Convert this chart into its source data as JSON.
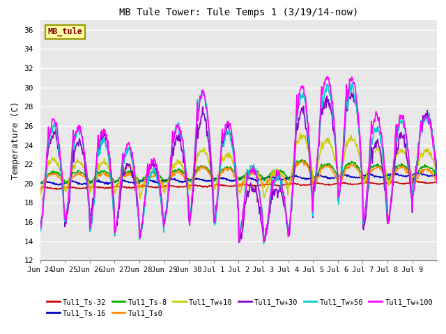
{
  "title": "MB Tule Tower: Tule Temps 1 (3/19/14-now)",
  "ylabel": "Temperature (C)",
  "ylim": [
    12,
    37
  ],
  "yticks": [
    12,
    14,
    16,
    18,
    20,
    22,
    24,
    26,
    28,
    30,
    32,
    34,
    36
  ],
  "bg_color": "#e8e8e8",
  "fig_color": "#ffffff",
  "grid_color": "#ffffff",
  "x_tick_labels": [
    "Jun 24",
    "Jun 25",
    "Jun 26",
    "Jun 27",
    "Jun 28",
    "Jun 29",
    "Jun 30",
    "Jul 1",
    "Jul 2",
    "Jul 3",
    "Jul 4",
    "Jul 5",
    "Jul 6",
    "Jul 7",
    "Jul 8",
    "Jul 9"
  ],
  "legend_box_facecolor": "#ffffaa",
  "legend_box_edgecolor": "#999900",
  "legend_box_textcolor": "#880000",
  "series": [
    {
      "label": "Tul1_Ts-32",
      "color": "#cc0000",
      "lw": 1.2
    },
    {
      "label": "Tul1_Ts-16",
      "color": "#0000cc",
      "lw": 1.2
    },
    {
      "label": "Tul1_Ts-8",
      "color": "#00aa00",
      "lw": 1.2
    },
    {
      "label": "Tul1_Ts0",
      "color": "#ff8800",
      "lw": 1.2
    },
    {
      "label": "Tul1_Tw+10",
      "color": "#cccc00",
      "lw": 1.2
    },
    {
      "label": "Tul1_Tw+30",
      "color": "#8800cc",
      "lw": 1.2
    },
    {
      "label": "Tul1_Tw+50",
      "color": "#00cccc",
      "lw": 1.2
    },
    {
      "label": "Tul1_Tw+100",
      "color": "#ff00ff",
      "lw": 1.2
    }
  ]
}
